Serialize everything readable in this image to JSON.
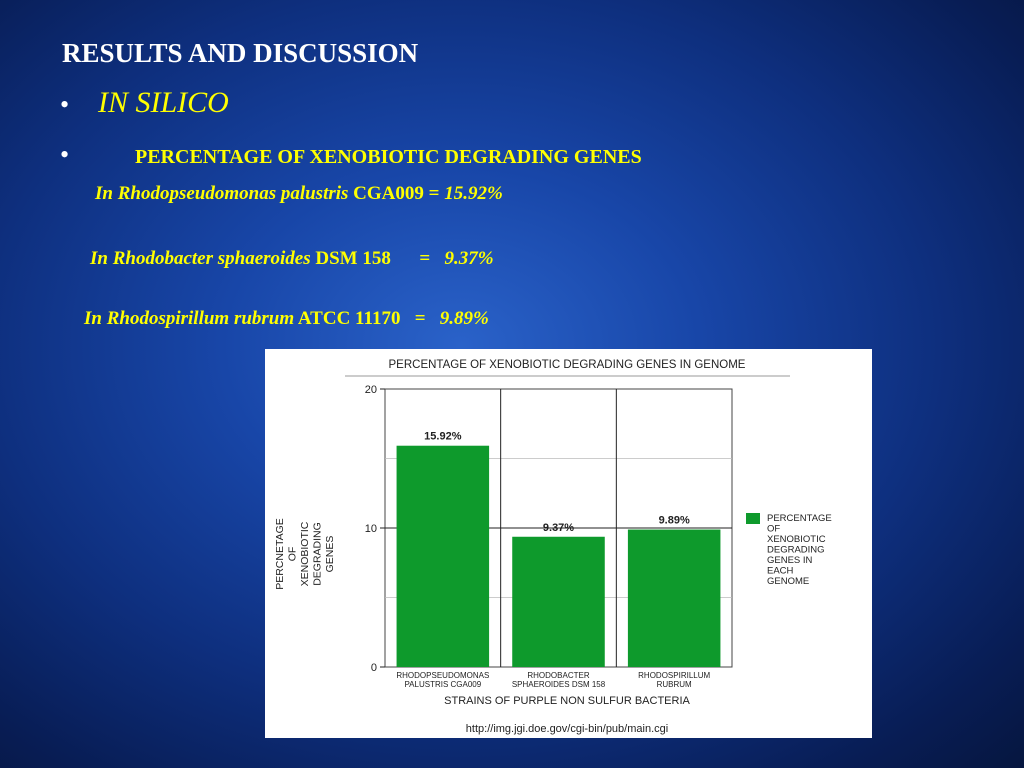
{
  "slide": {
    "heading": "RESULTS AND DISCUSSION",
    "bullet_symbol": "•",
    "in_silico": "IN SILICO",
    "pct_heading": "PERCENTAGE OF XENOBIOTIC DEGRADING GENES",
    "lines": [
      {
        "organism": "In Rhodopseudomonas palustris",
        "strain": "CGA009",
        "sep": "=",
        "value": "15.92%"
      },
      {
        "organism": "In Rhodobacter sphaeroides",
        "strain": "DSM 158",
        "sep": "=",
        "value": "9.37%"
      },
      {
        "organism": "In Rhodospirillum rubrum",
        "strain": "ATCC 11170",
        "sep": "=",
        "value": "9.89%"
      }
    ]
  },
  "chart_data": {
    "type": "bar",
    "title": "PERCENTAGE OF XENOBIOTIC DEGRADING GENES IN GENOME",
    "categories": [
      [
        "RHODOPSEUDOMONAS",
        "PALUSTRIS CGA009"
      ],
      [
        "RHODOBACTER",
        "SPHAEROIDES DSM 158"
      ],
      [
        "RHODOSPIRILLUM",
        "RUBRUM"
      ]
    ],
    "series": [
      {
        "name": [
          "PERCENTAGE",
          "OF",
          "XENOBIOTIC",
          "DEGRADING",
          "GENES IN",
          "EACH",
          "GENOME"
        ],
        "values": [
          15.92,
          9.37,
          9.89
        ],
        "labels": [
          "15.92%",
          "9.37%",
          "9.89%"
        ]
      }
    ],
    "ylabel": [
      "PERCNETAGE",
      "OF",
      "XENOBIOTIC",
      "DEGRADING",
      "GENES"
    ],
    "xlabel": "STRAINS OF PURPLE NON SULFUR BACTERIA",
    "ylim": [
      0,
      20
    ],
    "yticks": [
      0,
      10,
      20
    ],
    "grid": true,
    "legend_position": "right",
    "bar_color": "#0e9a2c",
    "source": "http://img.jgi.doe.gov/cgi-bin/pub/main.cgi"
  }
}
